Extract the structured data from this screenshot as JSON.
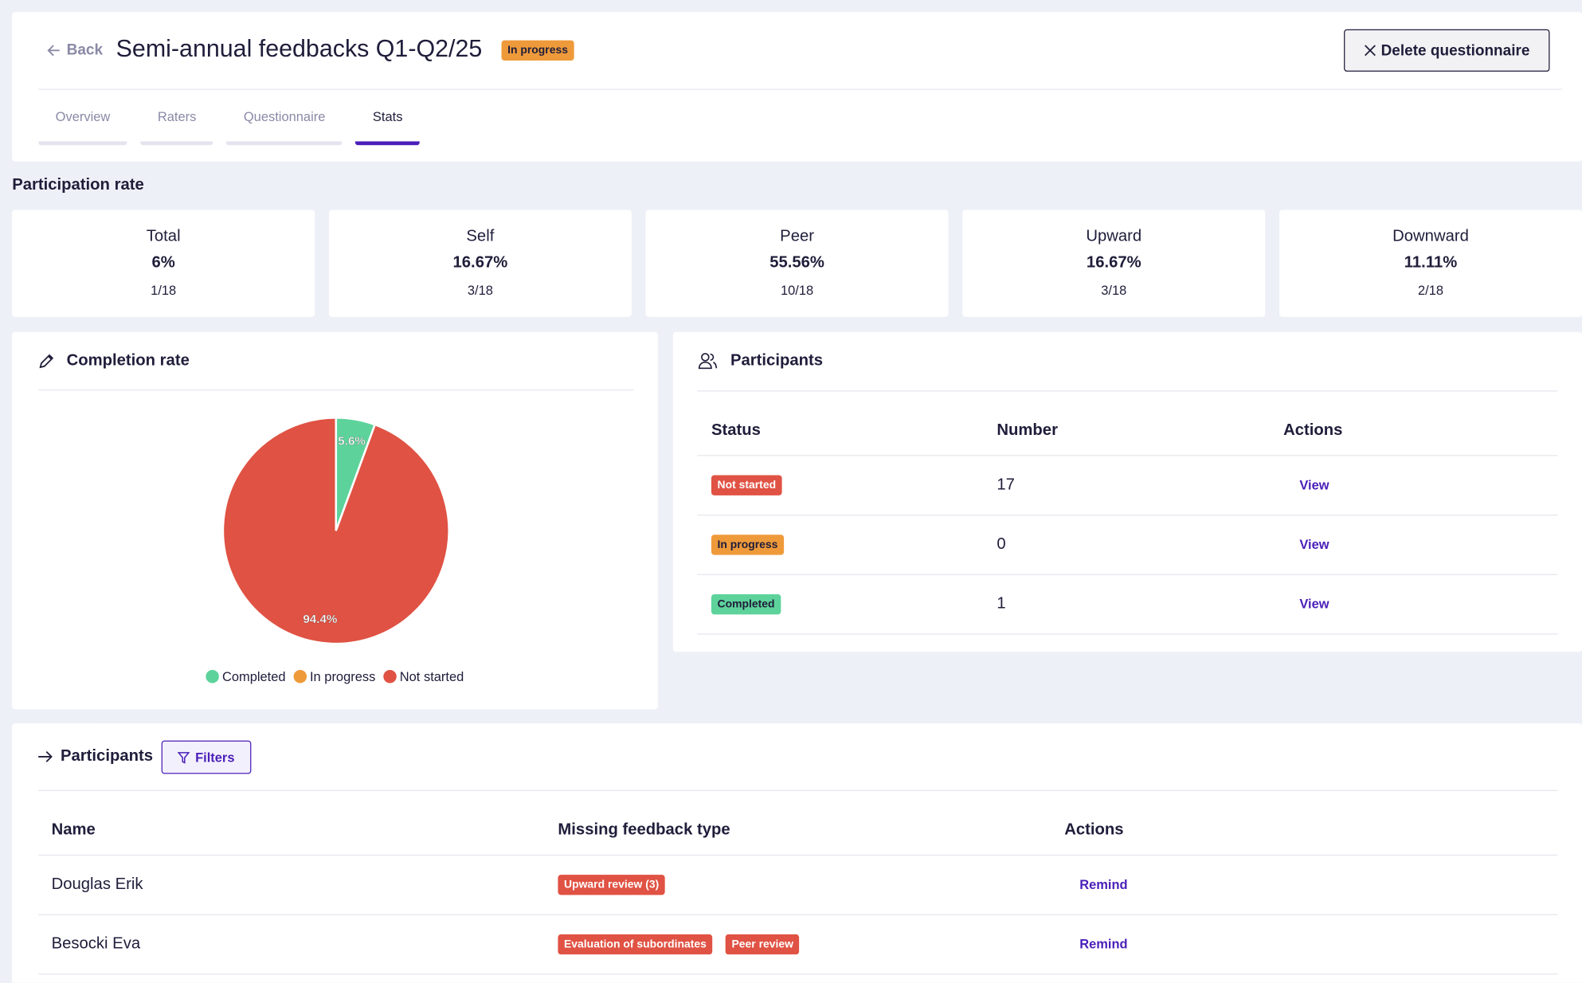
{
  "header": {
    "back": "Back",
    "title": "Semi-annual feedbacks Q1-Q2/25",
    "status": "In progress",
    "delete": "Delete questionnaire"
  },
  "tabs": [
    "Overview",
    "Raters",
    "Questionnaire",
    "Stats"
  ],
  "active_tab": 3,
  "participation": {
    "title": "Participation rate",
    "cards": [
      {
        "label": "Total",
        "rate": "6%",
        "count": "1/18"
      },
      {
        "label": "Self",
        "rate": "16.67%",
        "count": "3/18"
      },
      {
        "label": "Peer",
        "rate": "55.56%",
        "count": "10/18"
      },
      {
        "label": "Upward",
        "rate": "16.67%",
        "count": "3/18"
      },
      {
        "label": "Downward",
        "rate": "11.11%",
        "count": "2/18"
      }
    ]
  },
  "completion": {
    "title": "Completion rate",
    "chart_data": {
      "type": "pie",
      "categories": [
        "Completed",
        "In progress",
        "Not started"
      ],
      "values": [
        5.6,
        0,
        94.4
      ],
      "value_labels": [
        "5.6%",
        null,
        "94.4%"
      ],
      "colors": [
        "#5dd39b",
        "#ef9a3a",
        "#e05243"
      ]
    }
  },
  "participants_summary": {
    "title": "Participants",
    "columns": [
      "Status",
      "Number",
      "Actions"
    ],
    "rows": [
      {
        "status": "Not started",
        "number": 17,
        "action": "View",
        "color": "#e05243",
        "text_color": "#ffffff"
      },
      {
        "status": "In progress",
        "number": 0,
        "action": "View",
        "color": "#ef9a3a",
        "text_color": "#1f1d3a"
      },
      {
        "status": "Completed",
        "number": 1,
        "action": "View",
        "color": "#5dd39b",
        "text_color": "#1f1d3a"
      }
    ]
  },
  "participants": {
    "title": "Participants",
    "filter": "Filters",
    "columns": [
      "Name",
      "Missing feedback type",
      "Actions"
    ],
    "rows": [
      {
        "name": "Douglas Erik",
        "missing": [
          "Upward review (3)"
        ],
        "action": "Remind"
      },
      {
        "name": "Besocki Eva",
        "missing": [
          "Evaluation of subordinates",
          "Peer review"
        ],
        "action": "Remind"
      }
    ]
  }
}
